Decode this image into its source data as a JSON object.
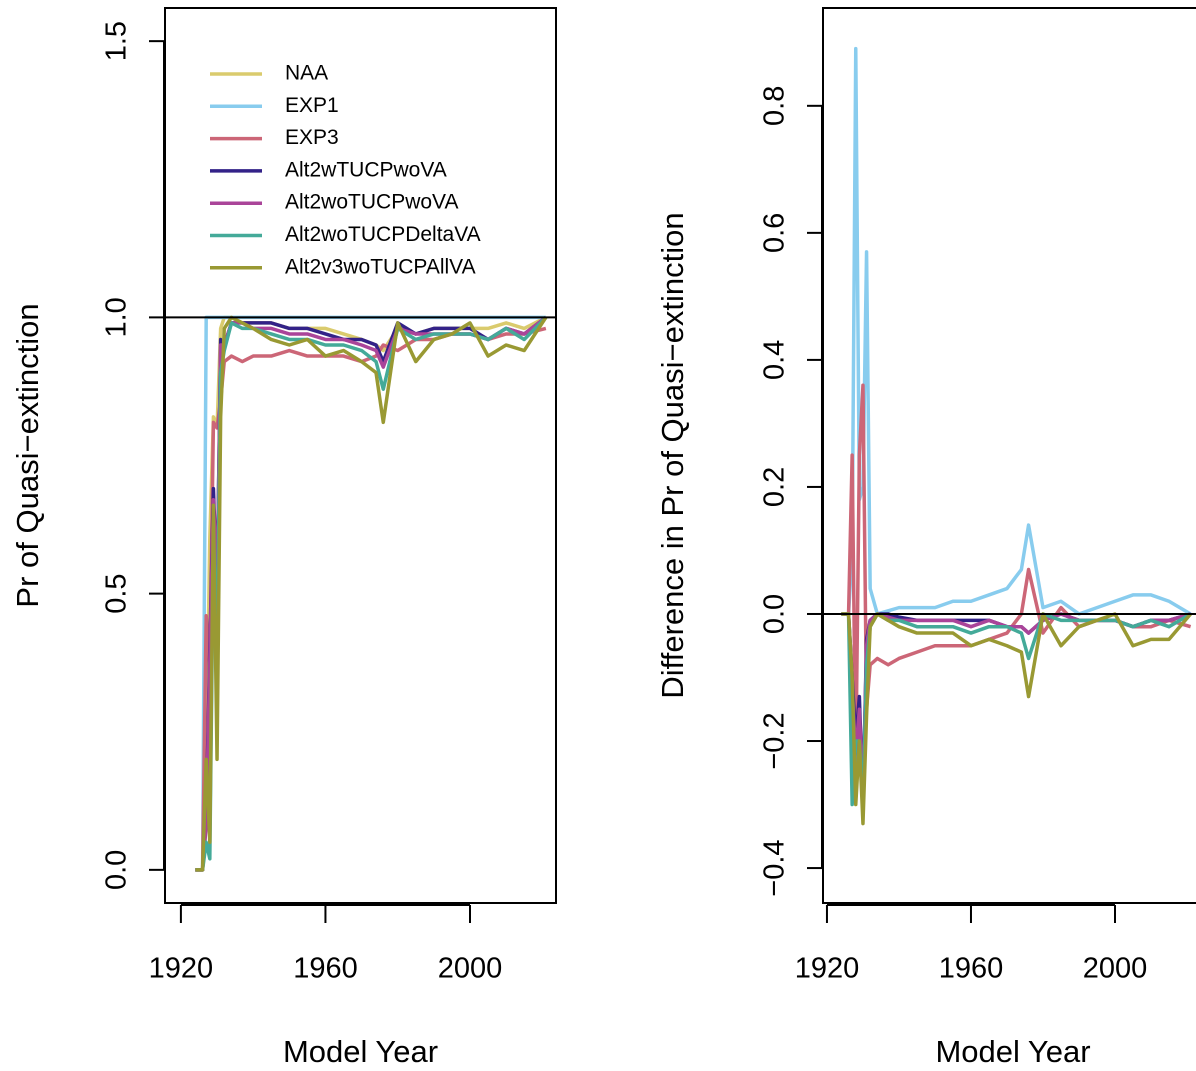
{
  "chart_data": [
    {
      "type": "line",
      "xlabel": "Model Year",
      "ylabel": "Pr of Quasi−extinction",
      "x": [
        1924,
        1926,
        1927,
        1928,
        1929,
        1930,
        1931,
        1932,
        1934,
        1937,
        1940,
        1945,
        1950,
        1955,
        1960,
        1965,
        1970,
        1974,
        1976,
        1980,
        1985,
        1990,
        1995,
        2000,
        2005,
        2010,
        2015,
        2021
      ],
      "xlim": [
        1915.6,
        2023.8
      ],
      "xticks": [
        1920,
        1960,
        2000
      ],
      "ylim": [
        -0.06,
        1.56
      ],
      "yticks": [
        {
          "value": 0,
          "label": "0.0"
        },
        {
          "value": 0.5,
          "label": "0.5"
        },
        {
          "value": 1,
          "label": "1.0"
        },
        {
          "value": 1.5,
          "label": "1.5"
        }
      ],
      "hline": 1,
      "legend": "topleft",
      "series": [
        {
          "name": "NAA",
          "color": "#dacb6d",
          "values": [
            0,
            0,
            0.2,
            0.6,
            0.82,
            0.8,
            0.98,
            1.0,
            1.0,
            0.99,
            0.99,
            0.99,
            0.98,
            0.98,
            0.98,
            0.97,
            0.96,
            0.95,
            0.94,
            0.98,
            0.97,
            0.98,
            0.98,
            0.98,
            0.98,
            0.99,
            0.98,
            1.0
          ]
        },
        {
          "name": "EXP1",
          "color": "#88ccee",
          "values": [
            0,
            0,
            1.0,
            1.0,
            1.0,
            1.0,
            1.0,
            1.0,
            1.0,
            1.0,
            1.0,
            1.0,
            1.0,
            1.0,
            1.0,
            1.0,
            1.0,
            1.0,
            1.0,
            1.0,
            1.0,
            1.0,
            1.0,
            1.0,
            1.0,
            1.0,
            1.0,
            1.0
          ]
        },
        {
          "name": "EXP3",
          "color": "#cc6677",
          "values": [
            0,
            0,
            0.46,
            0.36,
            0.81,
            0.8,
            0.85,
            0.92,
            0.93,
            0.92,
            0.93,
            0.93,
            0.94,
            0.93,
            0.93,
            0.93,
            0.92,
            0.93,
            0.95,
            0.94,
            0.96,
            0.96,
            0.97,
            0.97,
            0.96,
            0.97,
            0.97,
            0.98
          ]
        },
        {
          "name": "Alt2wTUCPwoVA",
          "color": "#332288",
          "values": [
            0,
            0,
            0.1,
            0.4,
            0.69,
            0.5,
            0.96,
            0.95,
            0.99,
            0.99,
            0.99,
            0.99,
            0.98,
            0.98,
            0.97,
            0.96,
            0.96,
            0.95,
            0.92,
            0.99,
            0.97,
            0.98,
            0.98,
            0.98,
            0.96,
            0.98,
            0.97,
            1.0
          ]
        },
        {
          "name": "Alt2woTUCPwoVA",
          "color": "#aa4499",
          "values": [
            0,
            0,
            0.08,
            0.38,
            0.67,
            0.5,
            0.95,
            0.95,
            0.99,
            0.99,
            0.98,
            0.98,
            0.97,
            0.97,
            0.96,
            0.96,
            0.95,
            0.94,
            0.91,
            0.98,
            0.97,
            0.97,
            0.97,
            0.97,
            0.96,
            0.98,
            0.97,
            1.0
          ]
        },
        {
          "name": "Alt2woTUCPDeltaVA",
          "color": "#44aa99",
          "values": [
            0,
            0,
            0.05,
            0.02,
            0.6,
            0.4,
            0.9,
            0.94,
            0.99,
            0.98,
            0.98,
            0.97,
            0.96,
            0.96,
            0.95,
            0.95,
            0.94,
            0.92,
            0.87,
            0.98,
            0.96,
            0.97,
            0.97,
            0.97,
            0.96,
            0.98,
            0.96,
            1.0
          ]
        },
        {
          "name": "Alt2v3woTUCPAllVA",
          "color": "#999933",
          "values": [
            0,
            0,
            0.2,
            0.05,
            0.66,
            0.2,
            0.82,
            0.98,
            1.0,
            0.99,
            0.98,
            0.96,
            0.95,
            0.96,
            0.93,
            0.94,
            0.92,
            0.9,
            0.81,
            0.99,
            0.92,
            0.96,
            0.97,
            0.99,
            0.93,
            0.95,
            0.94,
            1.0
          ]
        }
      ]
    },
    {
      "type": "line",
      "xlabel": "Model Year",
      "ylabel": "Difference in Pr of Quasi−extinction",
      "x": [
        1924,
        1926,
        1927,
        1928,
        1929,
        1930,
        1931,
        1932,
        1934,
        1937,
        1940,
        1945,
        1950,
        1955,
        1960,
        1965,
        1970,
        1974,
        1976,
        1980,
        1985,
        1990,
        1995,
        2000,
        2005,
        2010,
        2015,
        2021
      ],
      "xlim": [
        1918.9,
        2027.5
      ],
      "xticks": [
        1920,
        1960,
        2000
      ],
      "ylim": [
        -0.455,
        0.954
      ],
      "yticks": [
        {
          "value": -0.4,
          "label": "−0.4"
        },
        {
          "value": -0.2,
          "label": "−0.2"
        },
        {
          "value": 0,
          "label": "0.0"
        },
        {
          "value": 0.2,
          "label": "0.2"
        },
        {
          "value": 0.4,
          "label": "0.4"
        },
        {
          "value": 0.6,
          "label": "0.6"
        },
        {
          "value": 0.8,
          "label": "0.8"
        }
      ],
      "hline": 0,
      "series": [
        {
          "color": "#88ccee",
          "values": [
            0,
            0,
            0.1,
            0.89,
            0.18,
            0.2,
            0.57,
            0.04,
            0,
            0.005,
            0.01,
            0.01,
            0.01,
            0.02,
            0.02,
            0.03,
            0.04,
            0.07,
            0.14,
            0.01,
            0.02,
            0,
            0.01,
            0.02,
            0.03,
            0.03,
            0.02,
            0
          ]
        },
        {
          "color": "#cc6677",
          "values": [
            0,
            0,
            0.25,
            -0.24,
            0.25,
            0.36,
            -0.15,
            -0.08,
            -0.07,
            -0.08,
            -0.07,
            -0.06,
            -0.05,
            -0.05,
            -0.05,
            -0.04,
            -0.03,
            0,
            0.07,
            -0.03,
            0.01,
            -0.02,
            -0.01,
            -0.01,
            -0.02,
            -0.02,
            -0.01,
            -0.02
          ]
        },
        {
          "color": "#332288",
          "values": [
            0,
            0,
            -0.1,
            -0.2,
            -0.13,
            -0.3,
            -0.04,
            -0.01,
            0,
            0,
            -0.005,
            -0.01,
            -0.01,
            -0.01,
            -0.01,
            -0.01,
            -0.02,
            -0.02,
            -0.03,
            -0.01,
            0,
            -0.01,
            -0.01,
            -0.01,
            -0.02,
            -0.01,
            -0.01,
            0
          ]
        },
        {
          "color": "#aa4499",
          "values": [
            0,
            0,
            -0.12,
            -0.22,
            -0.15,
            -0.3,
            -0.05,
            -0.01,
            0,
            -0.005,
            -0.01,
            -0.01,
            -0.01,
            -0.01,
            -0.02,
            -0.01,
            -0.02,
            -0.02,
            -0.03,
            -0.01,
            0,
            -0.01,
            -0.01,
            -0.01,
            -0.02,
            -0.01,
            -0.01,
            0
          ]
        },
        {
          "color": "#44aa99",
          "values": [
            0,
            0,
            -0.3,
            -0.2,
            -0.2,
            -0.3,
            -0.08,
            -0.02,
            0,
            -0.01,
            -0.01,
            -0.02,
            -0.02,
            -0.02,
            -0.03,
            -0.02,
            -0.02,
            -0.03,
            -0.07,
            0,
            -0.01,
            -0.01,
            -0.01,
            -0.01,
            -0.02,
            -0.01,
            -0.02,
            0
          ]
        },
        {
          "color": "#999933",
          "values": [
            0,
            0,
            -0.1,
            -0.3,
            -0.2,
            -0.33,
            -0.16,
            -0.02,
            0,
            -0.01,
            -0.02,
            -0.03,
            -0.03,
            -0.03,
            -0.05,
            -0.04,
            -0.05,
            -0.06,
            -0.13,
            0,
            -0.05,
            -0.02,
            -0.01,
            0,
            -0.05,
            -0.04,
            -0.04,
            0
          ]
        }
      ]
    }
  ]
}
